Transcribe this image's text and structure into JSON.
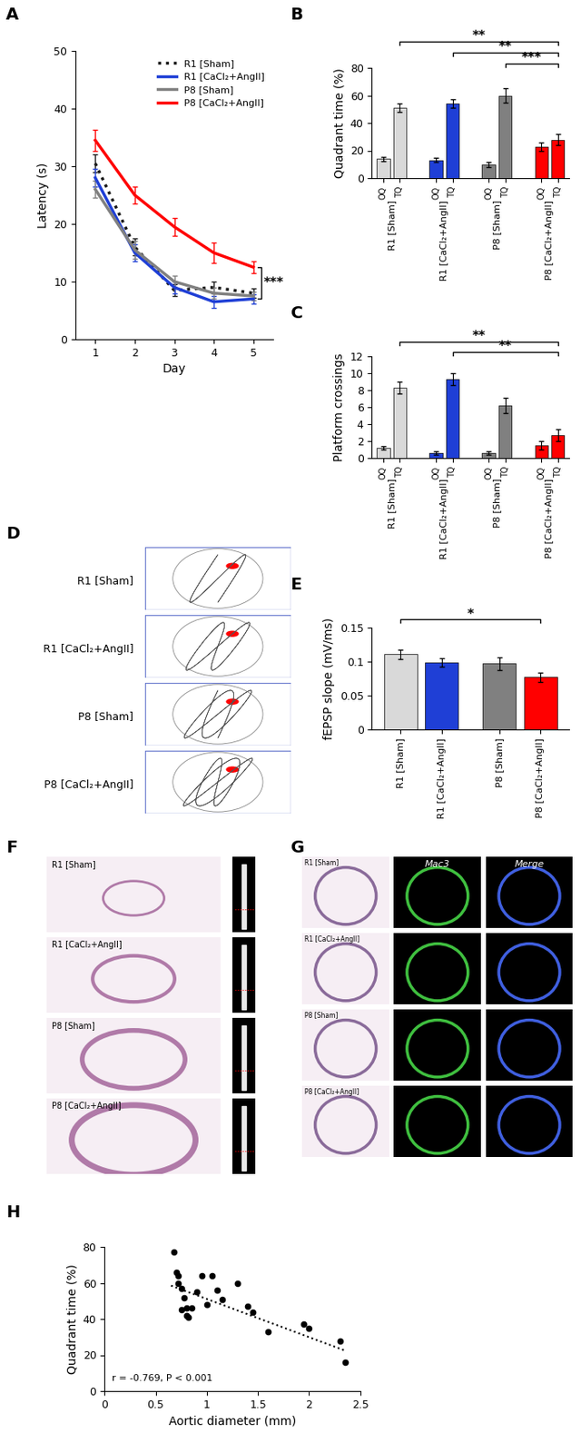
{
  "chart_data": [
    {
      "panel_label": "A",
      "type": "line",
      "x_label": "Day",
      "y_label": "Latency (s)",
      "x": [
        1,
        2,
        3,
        4,
        5
      ],
      "xlim": [
        0.5,
        5.5
      ],
      "xticks": [
        1,
        2,
        3,
        4,
        5
      ],
      "ylim": [
        0,
        50
      ],
      "yticks": [
        0,
        10,
        20,
        30,
        40,
        50
      ],
      "legend": "upper right",
      "annotation": "***",
      "series": [
        {
          "name": "R1 [Sham]",
          "color": "#1a1a1a",
          "line_style": "dotted",
          "values": [
            30.5,
            16,
            8.5,
            9,
            8
          ],
          "errors": [
            1.5,
            1.5,
            1,
            1,
            0.8
          ]
        },
        {
          "name": "R1 [CaCl₂+AngII]",
          "color": "#1f3fd6",
          "line_style": "solid",
          "values": [
            28,
            15,
            9,
            6.5,
            7
          ],
          "errors": [
            1.5,
            1.5,
            1,
            1,
            0.8
          ]
        },
        {
          "name": "P8 [Sham]",
          "color": "#808080",
          "line_style": "solid",
          "values": [
            26,
            15.5,
            10,
            8,
            7.5
          ],
          "errors": [
            1.5,
            1.5,
            1,
            1,
            0.8
          ]
        },
        {
          "name": "P8 [CaCl₂+AngII]",
          "color": "#ff0000",
          "line_style": "solid",
          "values": [
            34.5,
            25,
            19.5,
            15,
            12.5
          ],
          "errors": [
            1.8,
            1.5,
            1.5,
            1.8,
            1
          ]
        }
      ]
    },
    {
      "panel_label": "B",
      "type": "bar",
      "y_label": "Quadrant time (%)",
      "categories": [
        "OQ",
        "TQ"
      ],
      "ylim": [
        0,
        80
      ],
      "yticks": [
        0,
        20,
        40,
        60,
        80
      ],
      "series": [
        {
          "name": "R1 [Sham]",
          "color": "#d9d9d9",
          "values": [
            14,
            51
          ],
          "errors": [
            1.5,
            3
          ]
        },
        {
          "name": "R1 [CaCl₂+AngII]",
          "color": "#1f3fd6",
          "values": [
            13,
            54
          ],
          "errors": [
            1.5,
            3
          ]
        },
        {
          "name": "P8 [Sham]",
          "color": "#808080",
          "values": [
            10,
            60
          ],
          "errors": [
            2,
            5
          ]
        },
        {
          "name": "P8 [CaCl₂+AngII]",
          "color": "#ff0000",
          "values": [
            23,
            28
          ],
          "errors": [
            3,
            4
          ]
        }
      ],
      "significance": [
        {
          "from": [
            0,
            1
          ],
          "to": [
            3,
            1
          ],
          "label": "**"
        },
        {
          "from": [
            1,
            1
          ],
          "to": [
            3,
            1
          ],
          "label": "**"
        },
        {
          "from": [
            2,
            1
          ],
          "to": [
            3,
            1
          ],
          "label": "***"
        }
      ]
    },
    {
      "panel_label": "C",
      "type": "bar",
      "y_label": "Platform crossings",
      "categories": [
        "OQ",
        "TQ"
      ],
      "ylim": [
        0,
        12
      ],
      "yticks": [
        0,
        2,
        4,
        6,
        8,
        10,
        12
      ],
      "series": [
        {
          "name": "R1 [Sham]",
          "color": "#d9d9d9",
          "values": [
            1.2,
            8.3
          ],
          "errors": [
            0.2,
            0.7
          ]
        },
        {
          "name": "R1 [CaCl₂+AngII]",
          "color": "#1f3fd6",
          "values": [
            0.6,
            9.3
          ],
          "errors": [
            0.2,
            0.7
          ]
        },
        {
          "name": "P8 [Sham]",
          "color": "#808080",
          "values": [
            0.6,
            6.2
          ],
          "errors": [
            0.2,
            0.9
          ]
        },
        {
          "name": "P8 [CaCl₂+AngII]",
          "color": "#ff0000",
          "values": [
            1.5,
            2.7
          ],
          "errors": [
            0.5,
            0.7
          ]
        }
      ],
      "significance": [
        {
          "from": [
            0,
            1
          ],
          "to": [
            3,
            1
          ],
          "label": "**"
        },
        {
          "from": [
            1,
            1
          ],
          "to": [
            3,
            1
          ],
          "label": "**"
        }
      ]
    },
    {
      "panel_label": "D",
      "type": "image",
      "row_labels": [
        "R1 [Sham]",
        "R1 [CaCl₂+AngII]",
        "P8 [Sham]",
        "P8 [CaCl₂+AngII]"
      ]
    },
    {
      "panel_label": "E",
      "type": "bar",
      "y_label": "fEPSP slope (mV/ms)",
      "categories": [
        "R1 [Sham]",
        "R1 [CaCl₂+AngII]",
        "P8 [Sham]",
        "P8 [CaCl₂+AngII]"
      ],
      "values": [
        0.111,
        0.099,
        0.097,
        0.077
      ],
      "errors": [
        0.007,
        0.006,
        0.009,
        0.007
      ],
      "colors": [
        "#d9d9d9",
        "#1f3fd6",
        "#808080",
        "#ff0000"
      ],
      "ylim": [
        0,
        0.15
      ],
      "yticks": [
        0,
        0.05,
        0.1,
        0.15
      ],
      "significance": [
        {
          "from": 0,
          "to": 3,
          "label": "*"
        }
      ]
    },
    {
      "panel_label": "F",
      "type": "image",
      "row_labels": [
        "R1 [Sham]",
        "R1 [CaCl₂+AngII]",
        "P8 [Sham]",
        "P8 [CaCl₂+AngII]"
      ]
    },
    {
      "panel_label": "G",
      "type": "image",
      "row_labels": [
        "R1 [Sham]",
        "R1 [CaCl₂+AngII]",
        "P8 [Sham]",
        "P8 [CaCl₂+AngII]"
      ],
      "column_labels": [
        "Mac3",
        "Merge"
      ]
    },
    {
      "panel_label": "H",
      "type": "scatter",
      "x_label": "Aortic diameter (mm)",
      "y_label": "Quadrant time (%)",
      "color": "#000000",
      "annotation": "r = -0.769, P < 0.001",
      "x": [
        0.68,
        0.7,
        0.72,
        0.75,
        0.78,
        0.8,
        0.8,
        0.82,
        0.85,
        0.9,
        0.95,
        1.0,
        1.05,
        1.1,
        1.15,
        1.3,
        1.4,
        1.45,
        1.6,
        1.95,
        2.0,
        2.3,
        2.35,
        0.72,
        0.75
      ],
      "y": [
        77,
        66,
        64,
        57,
        52,
        46,
        42,
        41,
        46,
        55,
        64,
        48,
        64,
        56,
        51,
        60,
        47,
        44,
        33,
        37,
        35,
        28,
        16,
        60,
        45
      ],
      "trend_line": {
        "x": [
          0.65,
          2.35
        ],
        "y": [
          58.5,
          22.5
        ]
      },
      "xlim": [
        0,
        2.5
      ],
      "xticks": [
        0,
        0.5,
        1,
        1.5,
        2,
        2.5
      ],
      "ylim": [
        0,
        80
      ],
      "yticks": [
        0,
        20,
        40,
        60,
        80
      ]
    }
  ]
}
